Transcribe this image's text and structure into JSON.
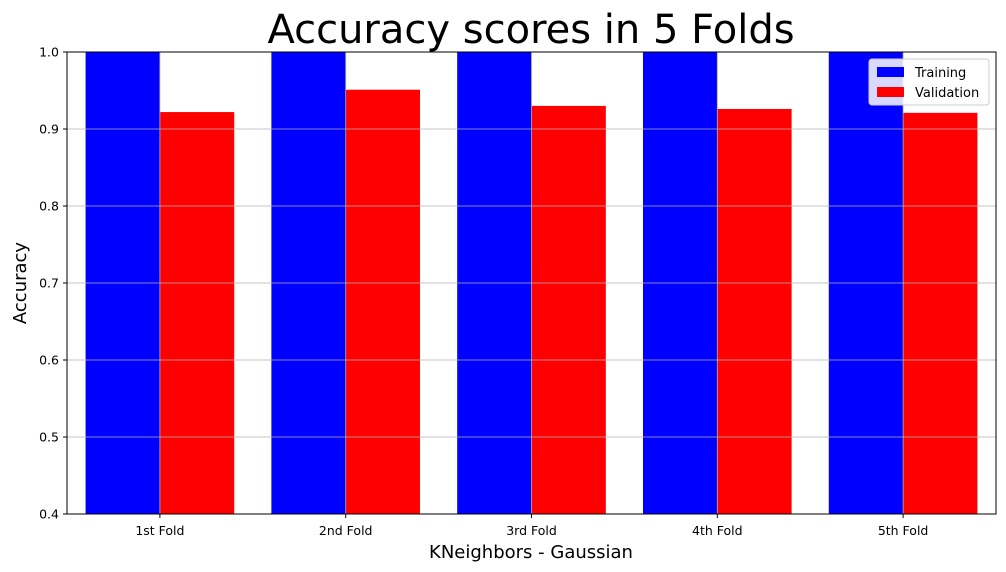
{
  "chart_data": {
    "type": "bar",
    "title": "Accuracy scores in 5 Folds",
    "xlabel": "KNeighbors - Gaussian",
    "ylabel": "Accuracy",
    "categories": [
      "1st Fold",
      "2nd Fold",
      "3rd Fold",
      "4th Fold",
      "5th Fold"
    ],
    "series": [
      {
        "name": "Training",
        "color": "#0000ff",
        "values": [
          1.0,
          1.0,
          1.0,
          1.0,
          1.0
        ]
      },
      {
        "name": "Validation",
        "color": "#ff0000",
        "values": [
          0.922,
          0.951,
          0.93,
          0.926,
          0.921
        ]
      }
    ],
    "ylim": [
      0.4,
      1.0
    ],
    "yticks": [
      "0.4",
      "0.5",
      "0.6",
      "0.7",
      "0.8",
      "0.9",
      "1.0"
    ],
    "grid": true,
    "legend_position": "top-right"
  }
}
